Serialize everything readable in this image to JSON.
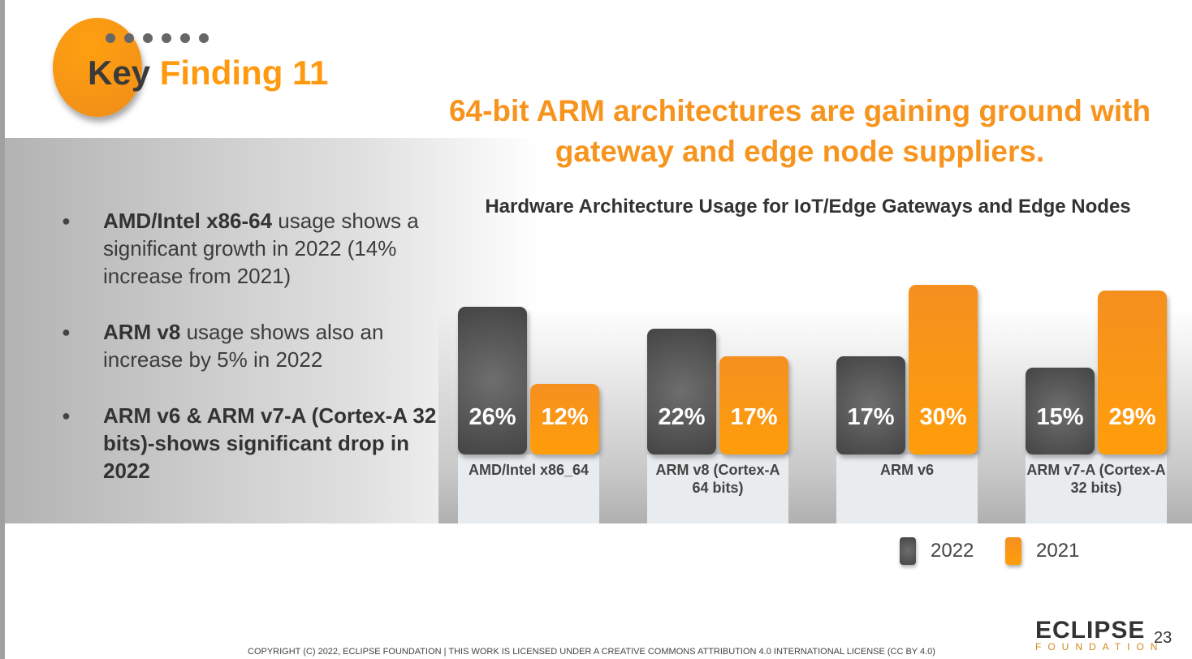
{
  "header": {
    "key": "Key",
    "finding": "Finding 11"
  },
  "headline": "64-bit ARM architectures are gaining ground with gateway and edge node suppliers.",
  "bullets": [
    {
      "bold": "AMD/Intel x86-64",
      "text": " usage shows a significant growth in 2022 (14% increase from 2021)"
    },
    {
      "bold": "ARM v8",
      "text": " usage shows also an increase by 5% in 2022"
    },
    {
      "bold": "ARM v6 & ARM v7-A (Cortex-A 32 bits)-shows significant drop in 2022",
      "text": ""
    }
  ],
  "chart_data": {
    "type": "bar",
    "title": "Hardware Architecture Usage for IoT/Edge Gateways and Edge Nodes",
    "categories": [
      "AMD/Intel x86_64",
      "ARM v8 (Cortex-A 64 bits)",
      "ARM v6",
      "ARM v7-A (Cortex-A 32 bits)"
    ],
    "series": [
      {
        "name": "2022",
        "color": "#555555",
        "values": [
          26,
          22,
          17,
          15
        ],
        "labels": [
          "26%",
          "22%",
          "17%",
          "15%"
        ]
      },
      {
        "name": "2021",
        "color": "#ff9a10",
        "values": [
          12,
          17,
          30,
          29
        ],
        "labels": [
          "12%",
          "17%",
          "30%",
          "29%"
        ]
      }
    ],
    "unit": "%",
    "legend": "bottom-right"
  },
  "footer": {
    "copyright": "COPYRIGHT (C) 2022, ECLIPSE FOUNDATION | THIS WORK IS LICENSED UNDER A CREATIVE COMMONS ATTRIBUTION 4.0 INTERNATIONAL LICENSE (CC BY 4.0)",
    "logo": "ECLIPSE",
    "logo_sub": "FOUNDATION",
    "page": "23"
  }
}
